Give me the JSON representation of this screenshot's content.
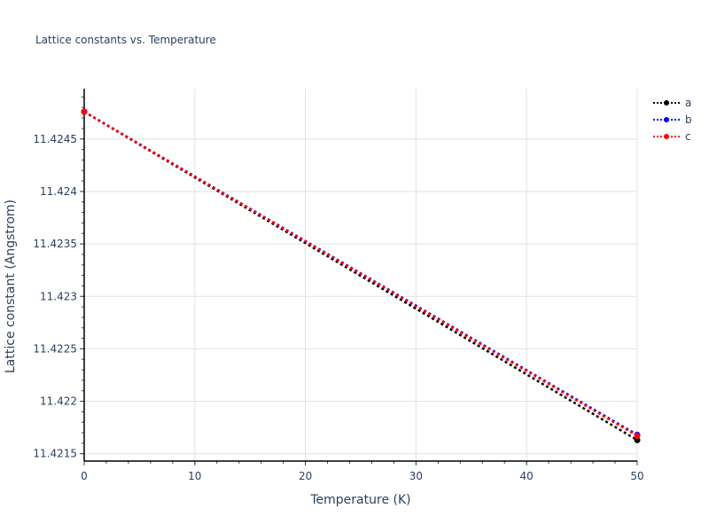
{
  "chart_data": {
    "type": "line",
    "title": "Lattice constants vs. Temperature",
    "xlabel": "Temperature (K)",
    "ylabel": "Lattice constant (Angstrom)",
    "x": [
      0,
      50
    ],
    "xlim": [
      0,
      50
    ],
    "ylim": [
      11.42143,
      11.42498
    ],
    "x_ticks": [
      "0",
      "10",
      "20",
      "30",
      "40",
      "50"
    ],
    "y_ticks": [
      "11.4215",
      "11.422",
      "11.4225",
      "11.423",
      "11.4235",
      "11.424",
      "11.4245"
    ],
    "grid": true,
    "legend_position": "top-right",
    "series": [
      {
        "name": "a",
        "color": "#000000",
        "values": [
          11.42476,
          11.42163
        ]
      },
      {
        "name": "b",
        "color": "#0000ff",
        "values": [
          11.42476,
          11.42168
        ]
      },
      {
        "name": "c",
        "color": "#ff0000",
        "values": [
          11.42476,
          11.42167
        ]
      }
    ]
  },
  "labels": {
    "title": "Lattice constants vs. Temperature",
    "xlabel": "Temperature (K)",
    "ylabel": "Lattice constant (Angstrom)"
  },
  "legend": [
    {
      "name": "a",
      "color": "#000000"
    },
    {
      "name": "b",
      "color": "#0000ff"
    },
    {
      "name": "c",
      "color": "#ff0000"
    }
  ]
}
